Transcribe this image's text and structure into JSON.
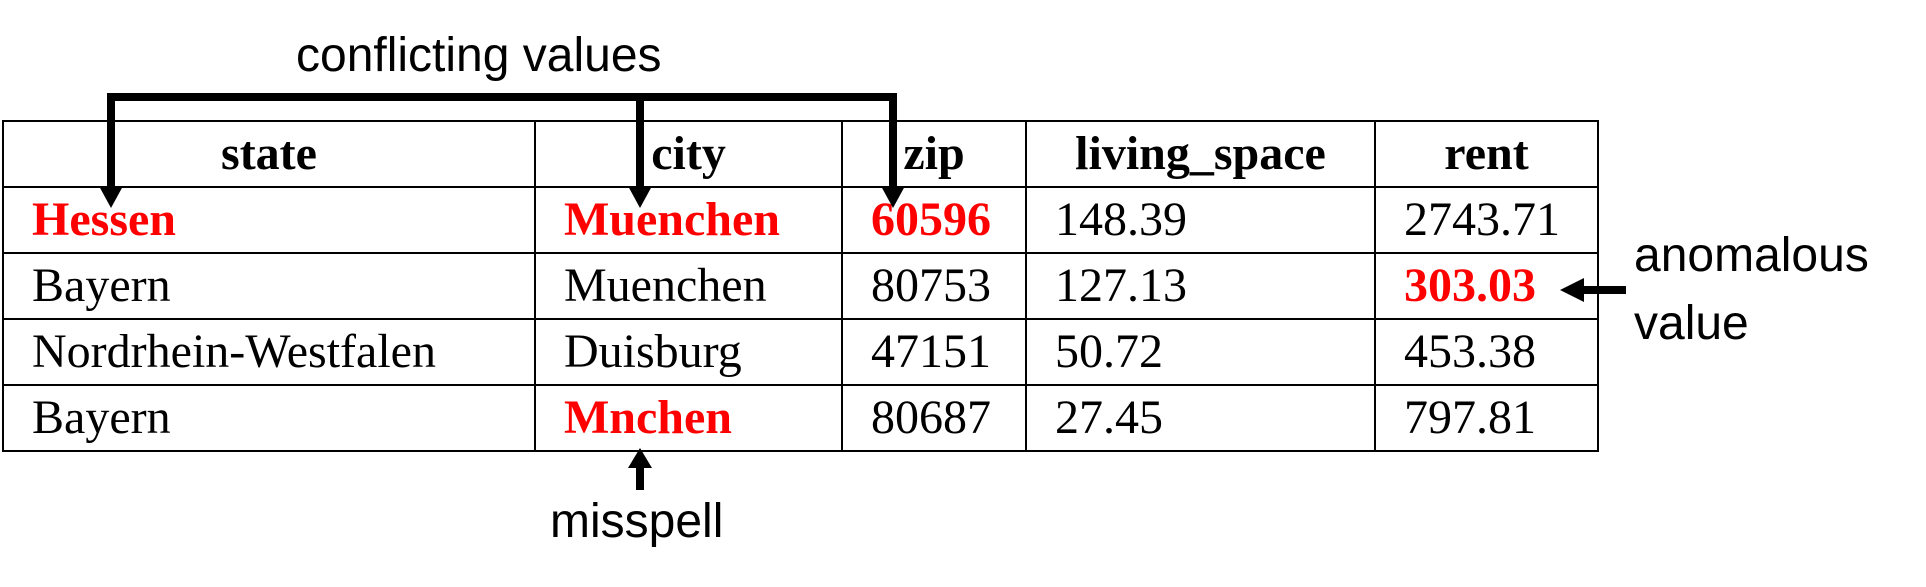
{
  "table": {
    "headers": [
      "state",
      "city",
      "zip",
      "living_space",
      "rent"
    ],
    "rows": [
      [
        "Hessen",
        "Muenchen",
        "60596",
        "148.39",
        "2743.71"
      ],
      [
        "Bayern",
        "Muenchen",
        "80753",
        "127.13",
        "303.03"
      ],
      [
        "Nordrhein-Westfalen",
        "Duisburg",
        "47151",
        "50.72",
        "453.38"
      ],
      [
        "Bayern",
        "Mnchen",
        "80687",
        "27.45",
        "797.81"
      ]
    ]
  },
  "annotations": {
    "conflicting": "conflicting values",
    "misspell": "misspell",
    "anomalous_line1": "anomalous",
    "anomalous_line2": "value"
  },
  "colors": {
    "error": "#ff0000",
    "text": "#000000"
  }
}
